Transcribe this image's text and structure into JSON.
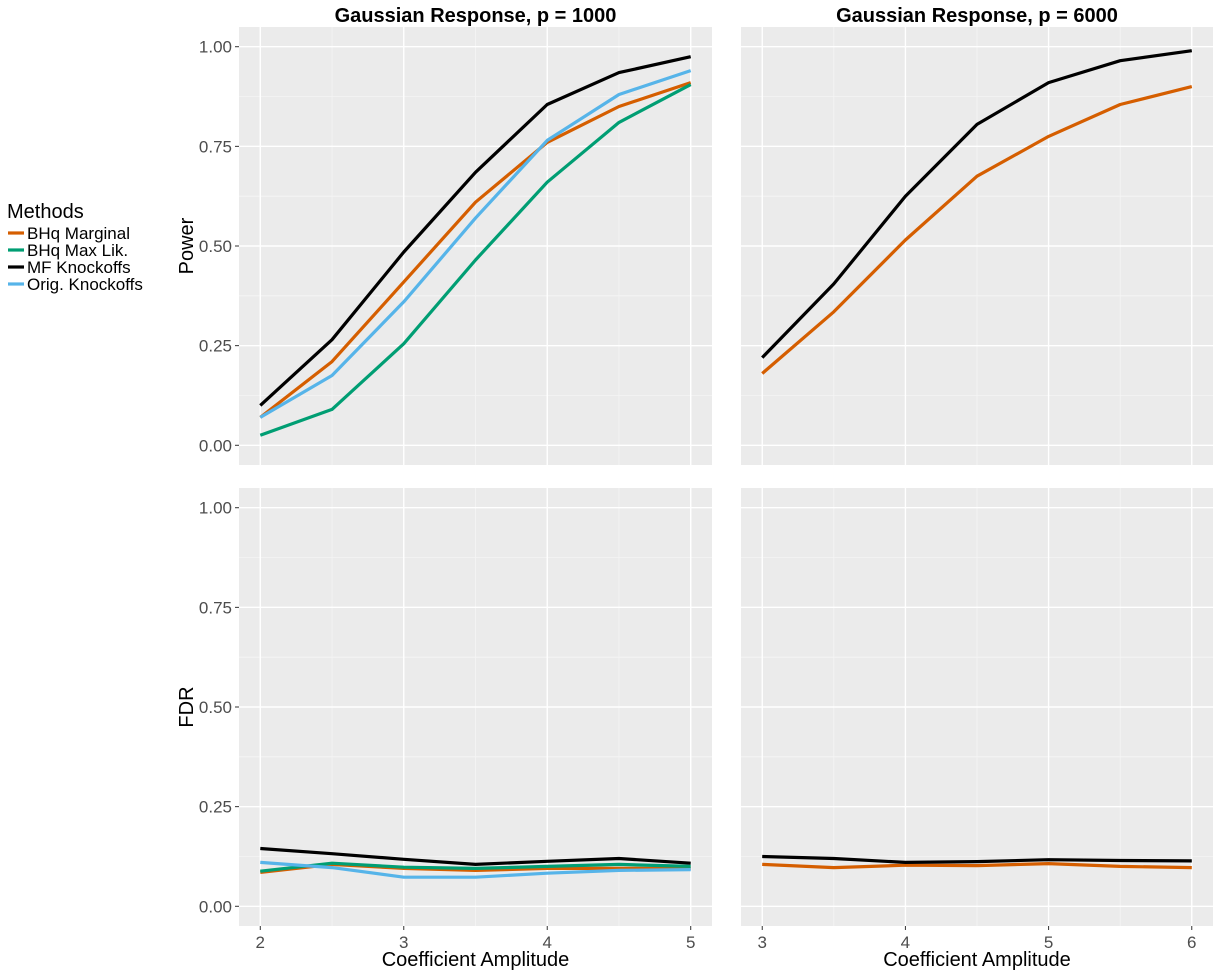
{
  "legend": {
    "title": "Methods",
    "position": "left",
    "entries": [
      {
        "label": "BHq Marginal",
        "color": "#D55E00"
      },
      {
        "label": "BHq Max Lik.",
        "color": "#009E73"
      },
      {
        "label": "MF Knockoffs",
        "color": "#000000"
      },
      {
        "label": "Orig. Knockoffs",
        "color": "#56B4E9"
      }
    ]
  },
  "chart_data": [
    {
      "type": "line",
      "title": "Gaussian Response, p = 1000",
      "xlabel": "",
      "ylabel": "Power",
      "xlim": [
        2,
        5
      ],
      "ylim": [
        0,
        1
      ],
      "xticks": [
        2,
        3,
        4,
        5
      ],
      "yticks": [
        "0.00",
        "0.25",
        "0.50",
        "0.75",
        "1.00"
      ],
      "grid": true,
      "x": [
        2,
        2.5,
        3,
        3.5,
        4,
        4.5,
        5
      ],
      "series": [
        {
          "name": "BHq Marginal",
          "color": "#D55E00",
          "values": [
            0.07,
            0.21,
            0.41,
            0.61,
            0.76,
            0.85,
            0.91
          ]
        },
        {
          "name": "BHq Max Lik.",
          "color": "#009E73",
          "values": [
            0.025,
            0.09,
            0.255,
            0.465,
            0.66,
            0.81,
            0.905
          ]
        },
        {
          "name": "MF Knockoffs",
          "color": "#000000",
          "values": [
            0.1,
            0.265,
            0.485,
            0.685,
            0.855,
            0.935,
            0.975
          ]
        },
        {
          "name": "Orig. Knockoffs",
          "color": "#56B4E9",
          "values": [
            0.07,
            0.175,
            0.36,
            0.57,
            0.765,
            0.88,
            0.94
          ]
        }
      ]
    },
    {
      "type": "line",
      "title": "Gaussian Response, p = 6000",
      "xlabel": "",
      "ylabel": "",
      "xlim": [
        3,
        6
      ],
      "ylim": [
        0,
        1
      ],
      "xticks": [
        3,
        4,
        5,
        6
      ],
      "yticks": [],
      "grid": true,
      "x": [
        3,
        3.5,
        4,
        4.5,
        5,
        5.5,
        6
      ],
      "series": [
        {
          "name": "BHq Marginal",
          "color": "#D55E00",
          "values": [
            0.18,
            0.335,
            0.515,
            0.675,
            0.775,
            0.855,
            0.9
          ]
        },
        {
          "name": "MF Knockoffs",
          "color": "#000000",
          "values": [
            0.22,
            0.405,
            0.625,
            0.805,
            0.91,
            0.965,
            0.99
          ]
        }
      ]
    },
    {
      "type": "line",
      "title": "",
      "xlabel": "Coefficient Amplitude",
      "ylabel": "FDR",
      "xlim": [
        2,
        5
      ],
      "ylim": [
        0,
        1
      ],
      "xticks": [
        2,
        3,
        4,
        5
      ],
      "yticks": [
        "0.00",
        "0.25",
        "0.50",
        "0.75",
        "1.00"
      ],
      "grid": true,
      "x": [
        2,
        2.5,
        3,
        3.5,
        4,
        4.5,
        5
      ],
      "series": [
        {
          "name": "BHq Marginal",
          "color": "#D55E00",
          "values": [
            0.085,
            0.105,
            0.095,
            0.09,
            0.095,
            0.095,
            0.095
          ]
        },
        {
          "name": "BHq Max Lik.",
          "color": "#009E73",
          "values": [
            0.088,
            0.108,
            0.098,
            0.095,
            0.1,
            0.105,
            0.1
          ]
        },
        {
          "name": "MF Knockoffs",
          "color": "#000000",
          "values": [
            0.145,
            0.132,
            0.118,
            0.105,
            0.113,
            0.12,
            0.108
          ]
        },
        {
          "name": "Orig. Knockoffs",
          "color": "#56B4E9",
          "values": [
            0.11,
            0.097,
            0.073,
            0.073,
            0.083,
            0.09,
            0.092
          ]
        }
      ]
    },
    {
      "type": "line",
      "title": "",
      "xlabel": "Coefficient Amplitude",
      "ylabel": "",
      "xlim": [
        3,
        6
      ],
      "ylim": [
        0,
        1
      ],
      "xticks": [
        3,
        4,
        5,
        6
      ],
      "yticks": [],
      "grid": true,
      "x": [
        3,
        3.5,
        4,
        4.5,
        5,
        5.5,
        6
      ],
      "series": [
        {
          "name": "BHq Marginal",
          "color": "#D55E00",
          "values": [
            0.105,
            0.097,
            0.103,
            0.102,
            0.107,
            0.1,
            0.097
          ]
        },
        {
          "name": "MF Knockoffs",
          "color": "#000000",
          "values": [
            0.125,
            0.12,
            0.11,
            0.112,
            0.117,
            0.115,
            0.114
          ]
        }
      ]
    }
  ]
}
